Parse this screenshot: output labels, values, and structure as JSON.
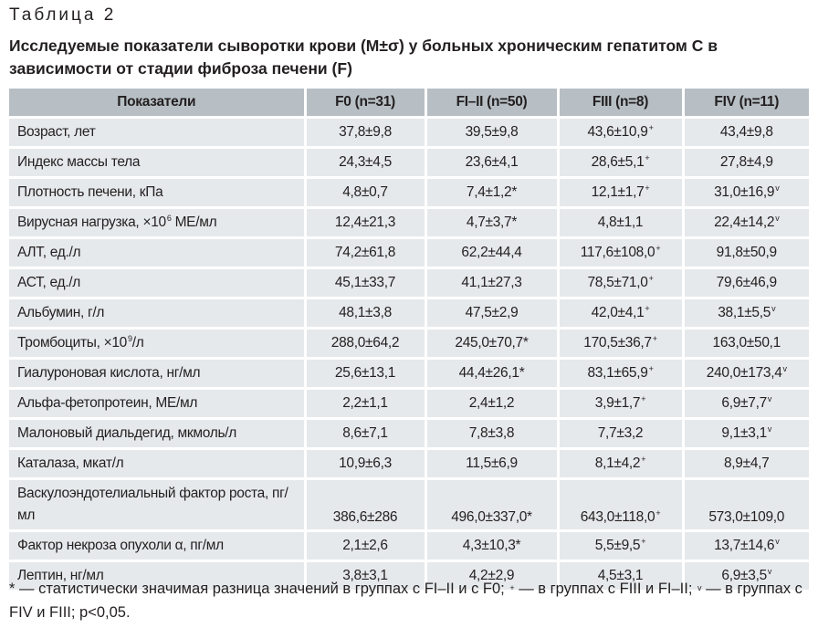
{
  "caption": "Таблица 2",
  "title": "Исследуемые показатели сыворотки крови (M±σ) у больных хроническим гепатитом С в зависимости от стадии фиброза печени (F)",
  "headers": [
    "Показатели",
    "F0 (n=31)",
    "FI–II (n=50)",
    "FIII (n=8)",
    "FIV (n=11)"
  ],
  "rows": [
    {
      "name": "Возраст, лет",
      "cells": [
        {
          "v": "37,8±9,8",
          "s": ""
        },
        {
          "v": "39,5±9,8",
          "s": ""
        },
        {
          "v": "43,6±10,9",
          "s": "+"
        },
        {
          "v": "43,4±9,8",
          "s": ""
        }
      ]
    },
    {
      "name": "Индекс массы тела",
      "cells": [
        {
          "v": "24,3±4,5",
          "s": ""
        },
        {
          "v": "23,6±4,1",
          "s": ""
        },
        {
          "v": "28,6±5,1",
          "s": "+"
        },
        {
          "v": "27,8±4,9",
          "s": ""
        }
      ]
    },
    {
      "name": "Плотность печени, кПа",
      "cells": [
        {
          "v": "4,8±0,7",
          "s": ""
        },
        {
          "v": "7,4±1,2*",
          "s": ""
        },
        {
          "v": "12,1±1,7",
          "s": "+"
        },
        {
          "v": "31,0±16,9",
          "s": "v"
        }
      ]
    },
    {
      "name": "Вирусная нагрузка, ×10",
      "name_sup": "6",
      "name_after": " МЕ/мл",
      "cells": [
        {
          "v": "12,4±21,3",
          "s": ""
        },
        {
          "v": "4,7±3,7*",
          "s": ""
        },
        {
          "v": "4,8±1,1",
          "s": ""
        },
        {
          "v": "22,4±14,2",
          "s": "v"
        }
      ]
    },
    {
      "name": "АЛТ, ед./л",
      "cells": [
        {
          "v": "74,2±61,8",
          "s": ""
        },
        {
          "v": "62,2±44,4",
          "s": ""
        },
        {
          "v": "117,6±108,0",
          "s": "+"
        },
        {
          "v": "91,8±50,9",
          "s": ""
        }
      ]
    },
    {
      "name": "АСТ, ед./л",
      "cells": [
        {
          "v": "45,1±33,7",
          "s": ""
        },
        {
          "v": "41,1±27,3",
          "s": ""
        },
        {
          "v": "78,5±71,0",
          "s": "+"
        },
        {
          "v": "79,6±46,9",
          "s": ""
        }
      ]
    },
    {
      "name": "Альбумин, г/л",
      "cells": [
        {
          "v": "48,1±3,8",
          "s": ""
        },
        {
          "v": "47,5±2,9",
          "s": ""
        },
        {
          "v": "42,0±4,1",
          "s": "+"
        },
        {
          "v": "38,1±5,5",
          "s": "v"
        }
      ]
    },
    {
      "name": "Тромбоциты, ×10",
      "name_sup": "9",
      "name_after": "/л",
      "cells": [
        {
          "v": "288,0±64,2",
          "s": ""
        },
        {
          "v": "245,0±70,7*",
          "s": ""
        },
        {
          "v": "170,5±36,7",
          "s": "+"
        },
        {
          "v": "163,0±50,1",
          "s": ""
        }
      ]
    },
    {
      "name": "Гиалуроновая кислота, нг/мл",
      "cells": [
        {
          "v": "25,6±13,1",
          "s": ""
        },
        {
          "v": "44,4±26,1*",
          "s": ""
        },
        {
          "v": "83,1±65,9",
          "s": "+"
        },
        {
          "v": "240,0±173,4",
          "s": "v"
        }
      ]
    },
    {
      "name": "Альфа-фетопротеин, МЕ/мл",
      "cells": [
        {
          "v": "2,2±1,1",
          "s": ""
        },
        {
          "v": "2,4±1,2",
          "s": ""
        },
        {
          "v": "3,9±1,7",
          "s": "+"
        },
        {
          "v": "6,9±7,7",
          "s": "v"
        }
      ]
    },
    {
      "name": "Малоновый диальдегид, мкмоль/л",
      "cells": [
        {
          "v": "8,6±7,1",
          "s": ""
        },
        {
          "v": "7,8±3,8",
          "s": ""
        },
        {
          "v": "7,7±3,2",
          "s": ""
        },
        {
          "v": "9,1±3,1",
          "s": "v"
        }
      ]
    },
    {
      "name": "Каталаза, мкат/л",
      "cells": [
        {
          "v": "10,9±6,3",
          "s": ""
        },
        {
          "v": "11,5±6,9",
          "s": ""
        },
        {
          "v": "8,1±4,2",
          "s": "+"
        },
        {
          "v": "8,9±4,7",
          "s": ""
        }
      ]
    },
    {
      "name": "Васкулоэндотелиальный фактор роста, пг/мл",
      "tall": true,
      "cells": [
        {
          "v": "386,6±286",
          "s": ""
        },
        {
          "v": "496,0±337,0*",
          "s": ""
        },
        {
          "v": "643,0±118,0",
          "s": "+"
        },
        {
          "v": "573,0±109,0",
          "s": ""
        }
      ]
    },
    {
      "name": "Фактор некроза опухоли α, пг/мл",
      "cells": [
        {
          "v": "2,1±2,6",
          "s": ""
        },
        {
          "v": "4,3±10,3*",
          "s": ""
        },
        {
          "v": "5,5±9,5",
          "s": "+"
        },
        {
          "v": "13,7±14,6",
          "s": "v"
        }
      ]
    },
    {
      "name": "Лептин, нг/мл",
      "cells": [
        {
          "v": "3,8±3,1",
          "s": ""
        },
        {
          "v": "4,2±2,9",
          "s": ""
        },
        {
          "v": "4,5±3,1",
          "s": ""
        },
        {
          "v": "6,9±3,5",
          "s": "v"
        }
      ]
    }
  ],
  "footnote": {
    "part1": "* — статистически значимая разница значений в группах с FI–II и с F0; ",
    "sup_plus": "+",
    "part2": " — в группах с FIII и FI–II; ",
    "sup_v": "v",
    "part3": " — в группах с FIV и FIII; p<0,05."
  }
}
